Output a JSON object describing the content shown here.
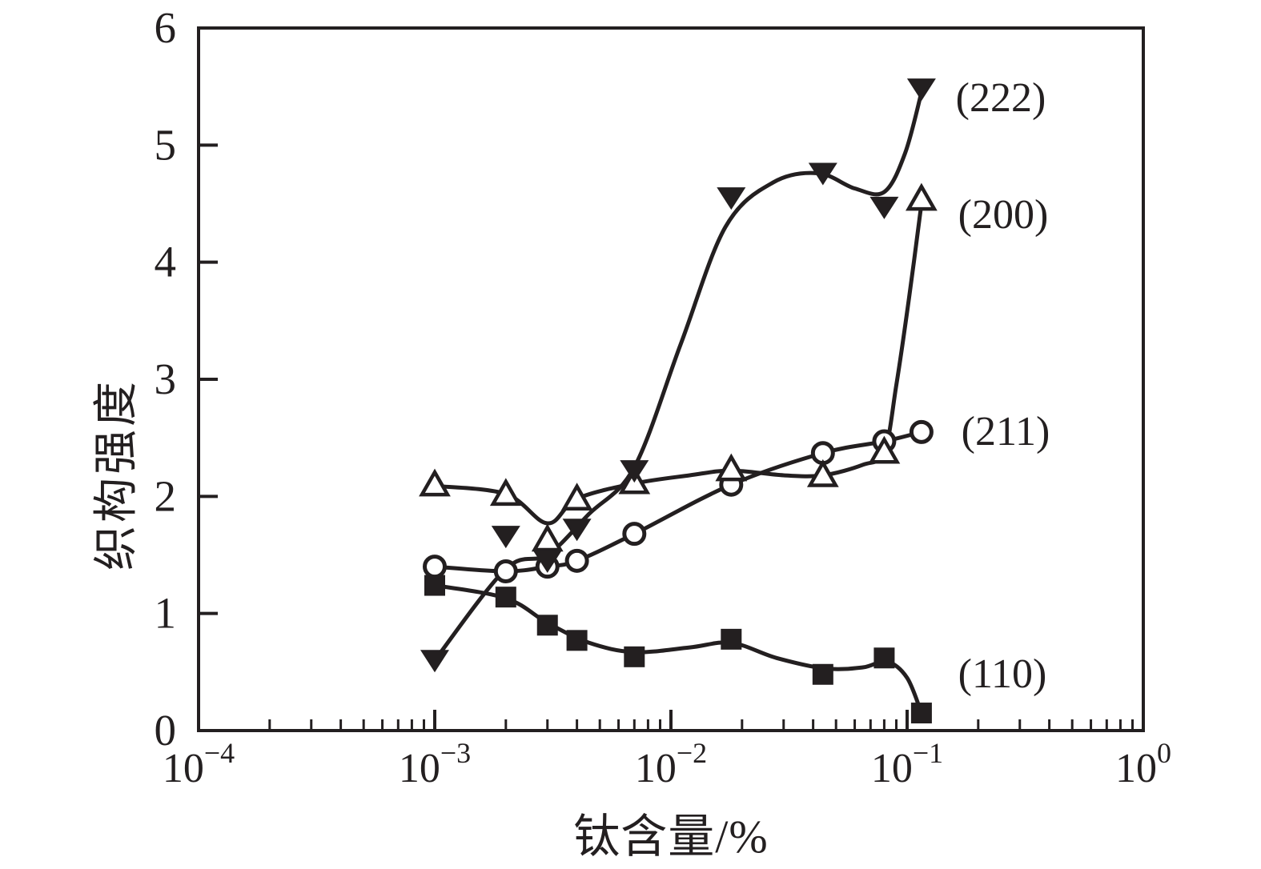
{
  "figure": {
    "background": "#ffffff",
    "ink_color": "#231f20"
  },
  "chart_data": {
    "type": "line",
    "title": "",
    "xlabel": "钛含量/%",
    "ylabel": "织构强度",
    "x_scale": "log10",
    "x_range": [
      0.0001,
      1
    ],
    "y_range": [
      0,
      6
    ],
    "grid": false,
    "legend_position": "inline-right-of-curves",
    "x_tick_exponents": [
      -4,
      -3,
      -2,
      -1,
      0
    ],
    "y_ticks": [
      0,
      1,
      2,
      3,
      4,
      5,
      6
    ],
    "x": [
      0.001,
      0.002,
      0.003,
      0.004,
      0.007,
      0.018,
      0.044,
      0.08,
      0.115
    ],
    "series": [
      {
        "name": "(110)",
        "marker": "filled-square",
        "values": [
          1.24,
          1.14,
          0.9,
          0.77,
          0.63,
          0.78,
          0.48,
          0.62,
          0.15
        ],
        "curve": [
          [
            0.001,
            1.24
          ],
          [
            0.002,
            1.13
          ],
          [
            0.003,
            0.92
          ],
          [
            0.0045,
            0.75
          ],
          [
            0.007,
            0.67
          ],
          [
            0.012,
            0.71
          ],
          [
            0.018,
            0.75
          ],
          [
            0.028,
            0.62
          ],
          [
            0.045,
            0.53
          ],
          [
            0.065,
            0.54
          ],
          [
            0.082,
            0.59
          ],
          [
            0.1,
            0.45
          ],
          [
            0.115,
            0.15
          ]
        ]
      },
      {
        "name": "(211)",
        "marker": "open-circle",
        "values": [
          1.4,
          1.36,
          1.4,
          1.45,
          1.68,
          2.1,
          2.37,
          2.47,
          2.55
        ],
        "curve": [
          [
            0.001,
            1.4
          ],
          [
            0.002,
            1.36
          ],
          [
            0.003,
            1.4
          ],
          [
            0.004,
            1.45
          ],
          [
            0.007,
            1.68
          ],
          [
            0.018,
            2.1
          ],
          [
            0.044,
            2.37
          ],
          [
            0.08,
            2.47
          ],
          [
            0.115,
            2.55
          ]
        ]
      },
      {
        "name": "(200)",
        "marker": "open-triangle-up",
        "values": [
          2.09,
          2.01,
          1.62,
          1.97,
          2.11,
          2.22,
          2.17,
          2.37,
          4.53
        ],
        "curve": [
          [
            0.001,
            2.09
          ],
          [
            0.002,
            2.02
          ],
          [
            0.003,
            1.77
          ],
          [
            0.004,
            1.98
          ],
          [
            0.007,
            2.11
          ],
          [
            0.012,
            2.18
          ],
          [
            0.018,
            2.22
          ],
          [
            0.03,
            2.18
          ],
          [
            0.044,
            2.18
          ],
          [
            0.065,
            2.27
          ],
          [
            0.08,
            2.38
          ],
          [
            0.09,
            2.95
          ],
          [
            0.102,
            3.7
          ],
          [
            0.115,
            4.5
          ]
        ]
      },
      {
        "name": "(222)",
        "marker": "filled-triangle-down",
        "values": [
          0.6,
          1.66,
          1.45,
          1.72,
          2.22,
          4.55,
          4.76,
          4.47,
          5.48
        ],
        "curve": [
          [
            0.001,
            0.6
          ],
          [
            0.002,
            1.38
          ],
          [
            0.003,
            1.5
          ],
          [
            0.0045,
            1.85
          ],
          [
            0.007,
            2.25
          ],
          [
            0.011,
            3.3
          ],
          [
            0.017,
            4.3
          ],
          [
            0.027,
            4.68
          ],
          [
            0.042,
            4.76
          ],
          [
            0.06,
            4.63
          ],
          [
            0.08,
            4.6
          ],
          [
            0.098,
            4.93
          ],
          [
            0.115,
            5.45
          ]
        ]
      }
    ]
  }
}
